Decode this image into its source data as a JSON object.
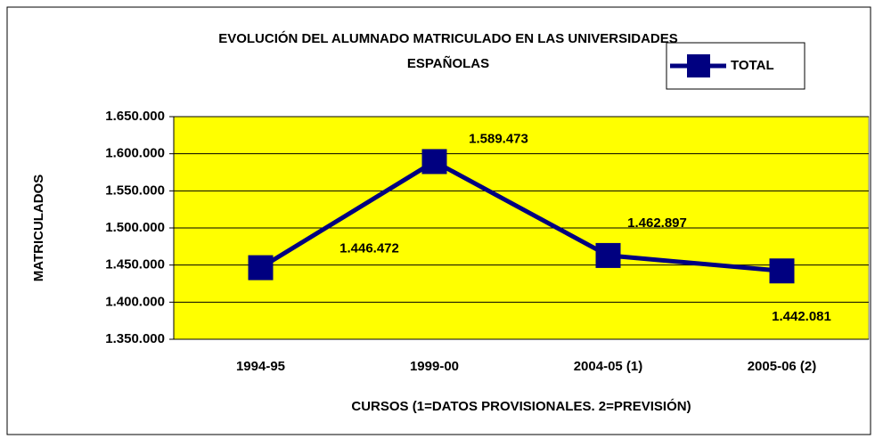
{
  "chart_data": {
    "type": "line",
    "title": [
      "EVOLUCIÓN DEL ALUMNADO MATRICULADO EN LAS UNIVERSIDADES",
      "ESPAÑOLAS"
    ],
    "x_label": "CURSOS (1=DATOS PROVISIONALES. 2=PREVISIÓN)",
    "y_label": "MATRICULADOS",
    "categories": [
      "1994-95",
      "1999-00",
      "2004-05 (1)",
      "2005-06 (2)"
    ],
    "series": [
      {
        "name": "TOTAL",
        "color": "#000080",
        "values": [
          1446472,
          1589473,
          1462897,
          1442081
        ],
        "value_labels": [
          "1.446.472",
          "1.589.473",
          "1.462.897",
          "1.442.081"
        ]
      }
    ],
    "ylim": [
      1350000,
      1650000
    ],
    "yticks": [
      {
        "value": 1350000,
        "label": "1.350.000"
      },
      {
        "value": 1400000,
        "label": "1.400.000"
      },
      {
        "value": 1450000,
        "label": "1.450.000"
      },
      {
        "value": 1500000,
        "label": "1.500.000"
      },
      {
        "value": 1550000,
        "label": "1.550.000"
      },
      {
        "value": 1600000,
        "label": "1.600.000"
      },
      {
        "value": 1650000,
        "label": "1.650.000"
      }
    ],
    "grid": true,
    "plot_background": "#ffff00",
    "legend": "top-right"
  }
}
